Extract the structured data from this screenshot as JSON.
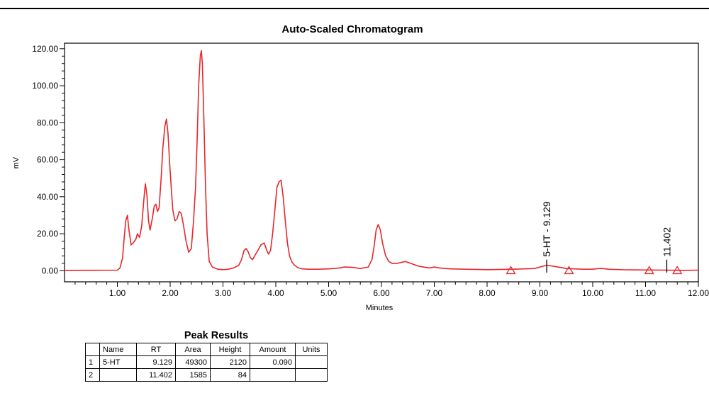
{
  "chart_data": {
    "type": "line",
    "title": "Auto-Scaled Chromatogram",
    "xlabel": "Minutes",
    "ylabel": "mV",
    "xlim": [
      0,
      12
    ],
    "ylim": [
      -6,
      123
    ],
    "x_ticks": [
      "1.00",
      "2.00",
      "3.00",
      "4.00",
      "5.00",
      "6.00",
      "7.00",
      "8.00",
      "9.00",
      "10.00",
      "11.00",
      "12.00"
    ],
    "y_ticks": [
      "0.00",
      "20.00",
      "40.00",
      "60.00",
      "80.00",
      "100.00",
      "120.00"
    ],
    "grid": false,
    "series": [
      {
        "color": "#e8262a",
        "x": [
          0.0,
          1.0,
          1.05,
          1.1,
          1.13,
          1.16,
          1.19,
          1.22,
          1.26,
          1.3,
          1.35,
          1.38,
          1.42,
          1.46,
          1.5,
          1.53,
          1.56,
          1.59,
          1.62,
          1.66,
          1.7,
          1.73,
          1.76,
          1.79,
          1.83,
          1.86,
          1.9,
          1.93,
          1.96,
          1.99,
          2.02,
          2.05,
          2.09,
          2.13,
          2.17,
          2.21,
          2.25,
          2.3,
          2.35,
          2.4,
          2.44,
          2.48,
          2.51,
          2.54,
          2.57,
          2.59,
          2.61,
          2.64,
          2.67,
          2.7,
          2.74,
          2.8,
          2.9,
          3.0,
          3.1,
          3.2,
          3.3,
          3.35,
          3.4,
          3.44,
          3.48,
          3.52,
          3.56,
          3.6,
          3.66,
          3.72,
          3.78,
          3.83,
          3.86,
          3.9,
          3.94,
          3.98,
          4.02,
          4.06,
          4.1,
          4.14,
          4.18,
          4.22,
          4.26,
          4.3,
          4.35,
          4.42,
          4.5,
          4.6,
          4.8,
          5.0,
          5.2,
          5.3,
          5.45,
          5.6,
          5.75,
          5.82,
          5.86,
          5.9,
          5.94,
          5.98,
          6.02,
          6.08,
          6.14,
          6.2,
          6.3,
          6.45,
          6.55,
          6.7,
          6.9,
          7.0,
          7.1,
          7.3,
          7.6,
          8.0,
          8.5,
          8.9,
          9.0,
          9.13,
          9.3,
          9.5,
          9.8,
          10.0,
          10.15,
          10.3,
          10.6,
          11.0,
          11.4,
          11.7,
          12.0
        ],
        "y": [
          0.2,
          0.3,
          1.5,
          7,
          18,
          27,
          30,
          22,
          14,
          15,
          17,
          20,
          18,
          24,
          38,
          47,
          41,
          27,
          22,
          28,
          35,
          36,
          32,
          34,
          50,
          66,
          78,
          82,
          74,
          58,
          45,
          33,
          27,
          28,
          32,
          31,
          25,
          16,
          10,
          12,
          26,
          45,
          70,
          100,
          116,
          119,
          112,
          80,
          45,
          20,
          5,
          2,
          0.8,
          0.6,
          0.8,
          1.5,
          3,
          6,
          11,
          12,
          10,
          7,
          6,
          8,
          11,
          14,
          15,
          11,
          9,
          11,
          20,
          32,
          45,
          48,
          49,
          40,
          27,
          15,
          8,
          5,
          3,
          1.6,
          1,
          0.8,
          0.8,
          1,
          1.5,
          2,
          1.8,
          1.2,
          2,
          6,
          13,
          22,
          25,
          22,
          15,
          8,
          5,
          4,
          4,
          5,
          4,
          2.5,
          1.5,
          2,
          1.5,
          1,
          0.8,
          0.6,
          0.8,
          1.2,
          2,
          3,
          2.2,
          1.2,
          0.8,
          0.8,
          1.3,
          0.8,
          0.5,
          0.4,
          0.3,
          0.2,
          0.3
        ]
      }
    ],
    "annotations": [
      {
        "text": "5-HT - 9.129",
        "x": 9.129
      },
      {
        "text": "11.402",
        "x": 11.402
      }
    ],
    "baseline_markers_x": [
      8.45,
      9.55,
      11.07,
      11.6
    ]
  },
  "peak_results": {
    "title": "Peak Results",
    "columns": [
      "",
      "Name",
      "RT",
      "Area",
      "Height",
      "Amount",
      "Units"
    ],
    "rows": [
      [
        "1",
        "5-HT",
        "9.129",
        "49300",
        "2120",
        "0.090",
        ""
      ],
      [
        "2",
        "",
        "11.402",
        "1585",
        "84",
        "",
        ""
      ]
    ]
  }
}
